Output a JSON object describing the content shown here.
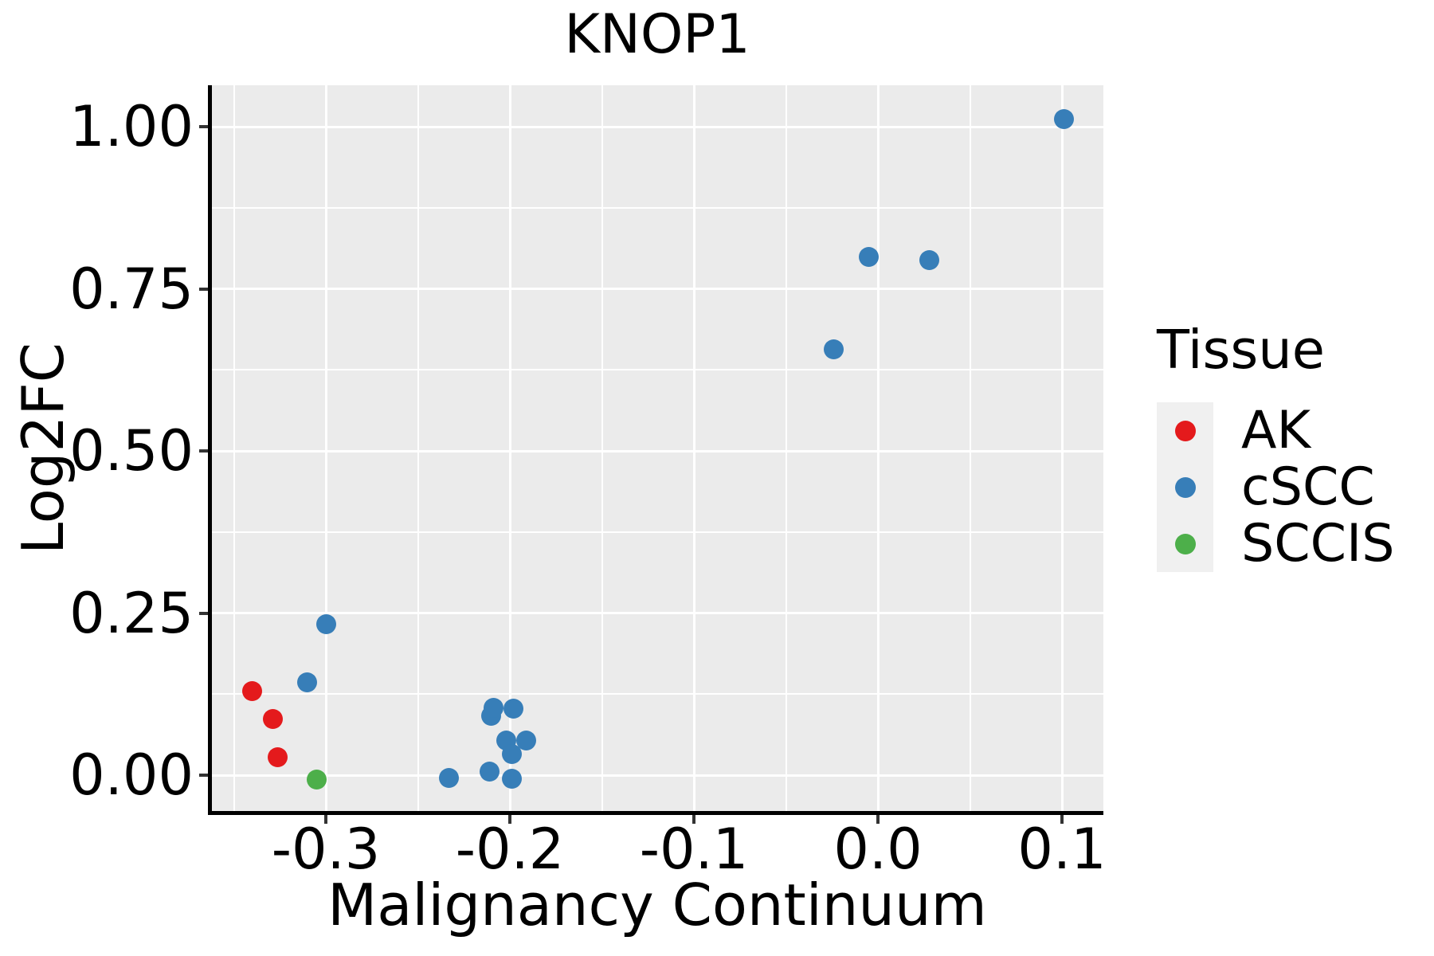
{
  "title": "KNOP1",
  "axes": {
    "x": {
      "label": "Malignancy Continuum",
      "tick_labels": [
        "-0.3",
        "-0.2",
        "-0.1",
        "0.0",
        "0.1"
      ],
      "tick_values": [
        -0.3,
        -0.2,
        -0.1,
        0.0,
        0.1
      ],
      "minor_values": [
        -0.35,
        -0.25,
        -0.15,
        -0.05,
        0.05
      ]
    },
    "y": {
      "label": "Log2FC",
      "tick_labels": [
        "0.00",
        "0.25",
        "0.50",
        "0.75",
        "1.00"
      ],
      "tick_values": [
        0.0,
        0.25,
        0.5,
        0.75,
        1.0
      ],
      "minor_values": [
        0.125,
        0.375,
        0.625,
        0.875
      ]
    }
  },
  "legend": {
    "title": "Tissue",
    "items": [
      {
        "label": "AK",
        "color": "#E41A1C"
      },
      {
        "label": "cSCC",
        "color": "#377EB8"
      },
      {
        "label": "SCCIS",
        "color": "#4DAF4A"
      }
    ]
  },
  "colors": {
    "panel_bg": "#EBEBEB",
    "grid": "#FFFFFF",
    "axis_line": "#000000",
    "tick_mark": "#333333",
    "legend_key_bg": "#F0F0F0",
    "text": "#000000"
  },
  "chart_data": {
    "type": "scatter",
    "title": "KNOP1",
    "xlabel": "Malignancy Continuum",
    "ylabel": "Log2FC",
    "xlim": [
      -0.362,
      0.124
    ],
    "ylim": [
      -0.058,
      1.063
    ],
    "grid": true,
    "legend_title": "Tissue",
    "legend_position": "right",
    "series": [
      {
        "name": "AK",
        "color": "#E41A1C",
        "points": [
          [
            -0.34,
            0.13
          ],
          [
            -0.329,
            0.086
          ],
          [
            -0.326,
            0.028
          ]
        ]
      },
      {
        "name": "cSCC",
        "color": "#377EB8",
        "points": [
          [
            -0.31,
            0.143
          ],
          [
            -0.3,
            0.233
          ],
          [
            -0.233,
            -0.004
          ],
          [
            -0.211,
            0.006
          ],
          [
            -0.21,
            0.091
          ],
          [
            -0.209,
            0.104
          ],
          [
            -0.202,
            0.053
          ],
          [
            -0.199,
            0.033
          ],
          [
            -0.199,
            -0.005
          ],
          [
            -0.198,
            0.102
          ],
          [
            -0.191,
            0.053
          ],
          [
            -0.024,
            0.657
          ],
          [
            -0.005,
            0.799
          ],
          [
            0.028,
            0.794
          ],
          [
            0.101,
            1.012
          ]
        ]
      },
      {
        "name": "SCCIS",
        "color": "#4DAF4A",
        "points": [
          [
            -0.305,
            -0.007
          ]
        ]
      }
    ]
  }
}
